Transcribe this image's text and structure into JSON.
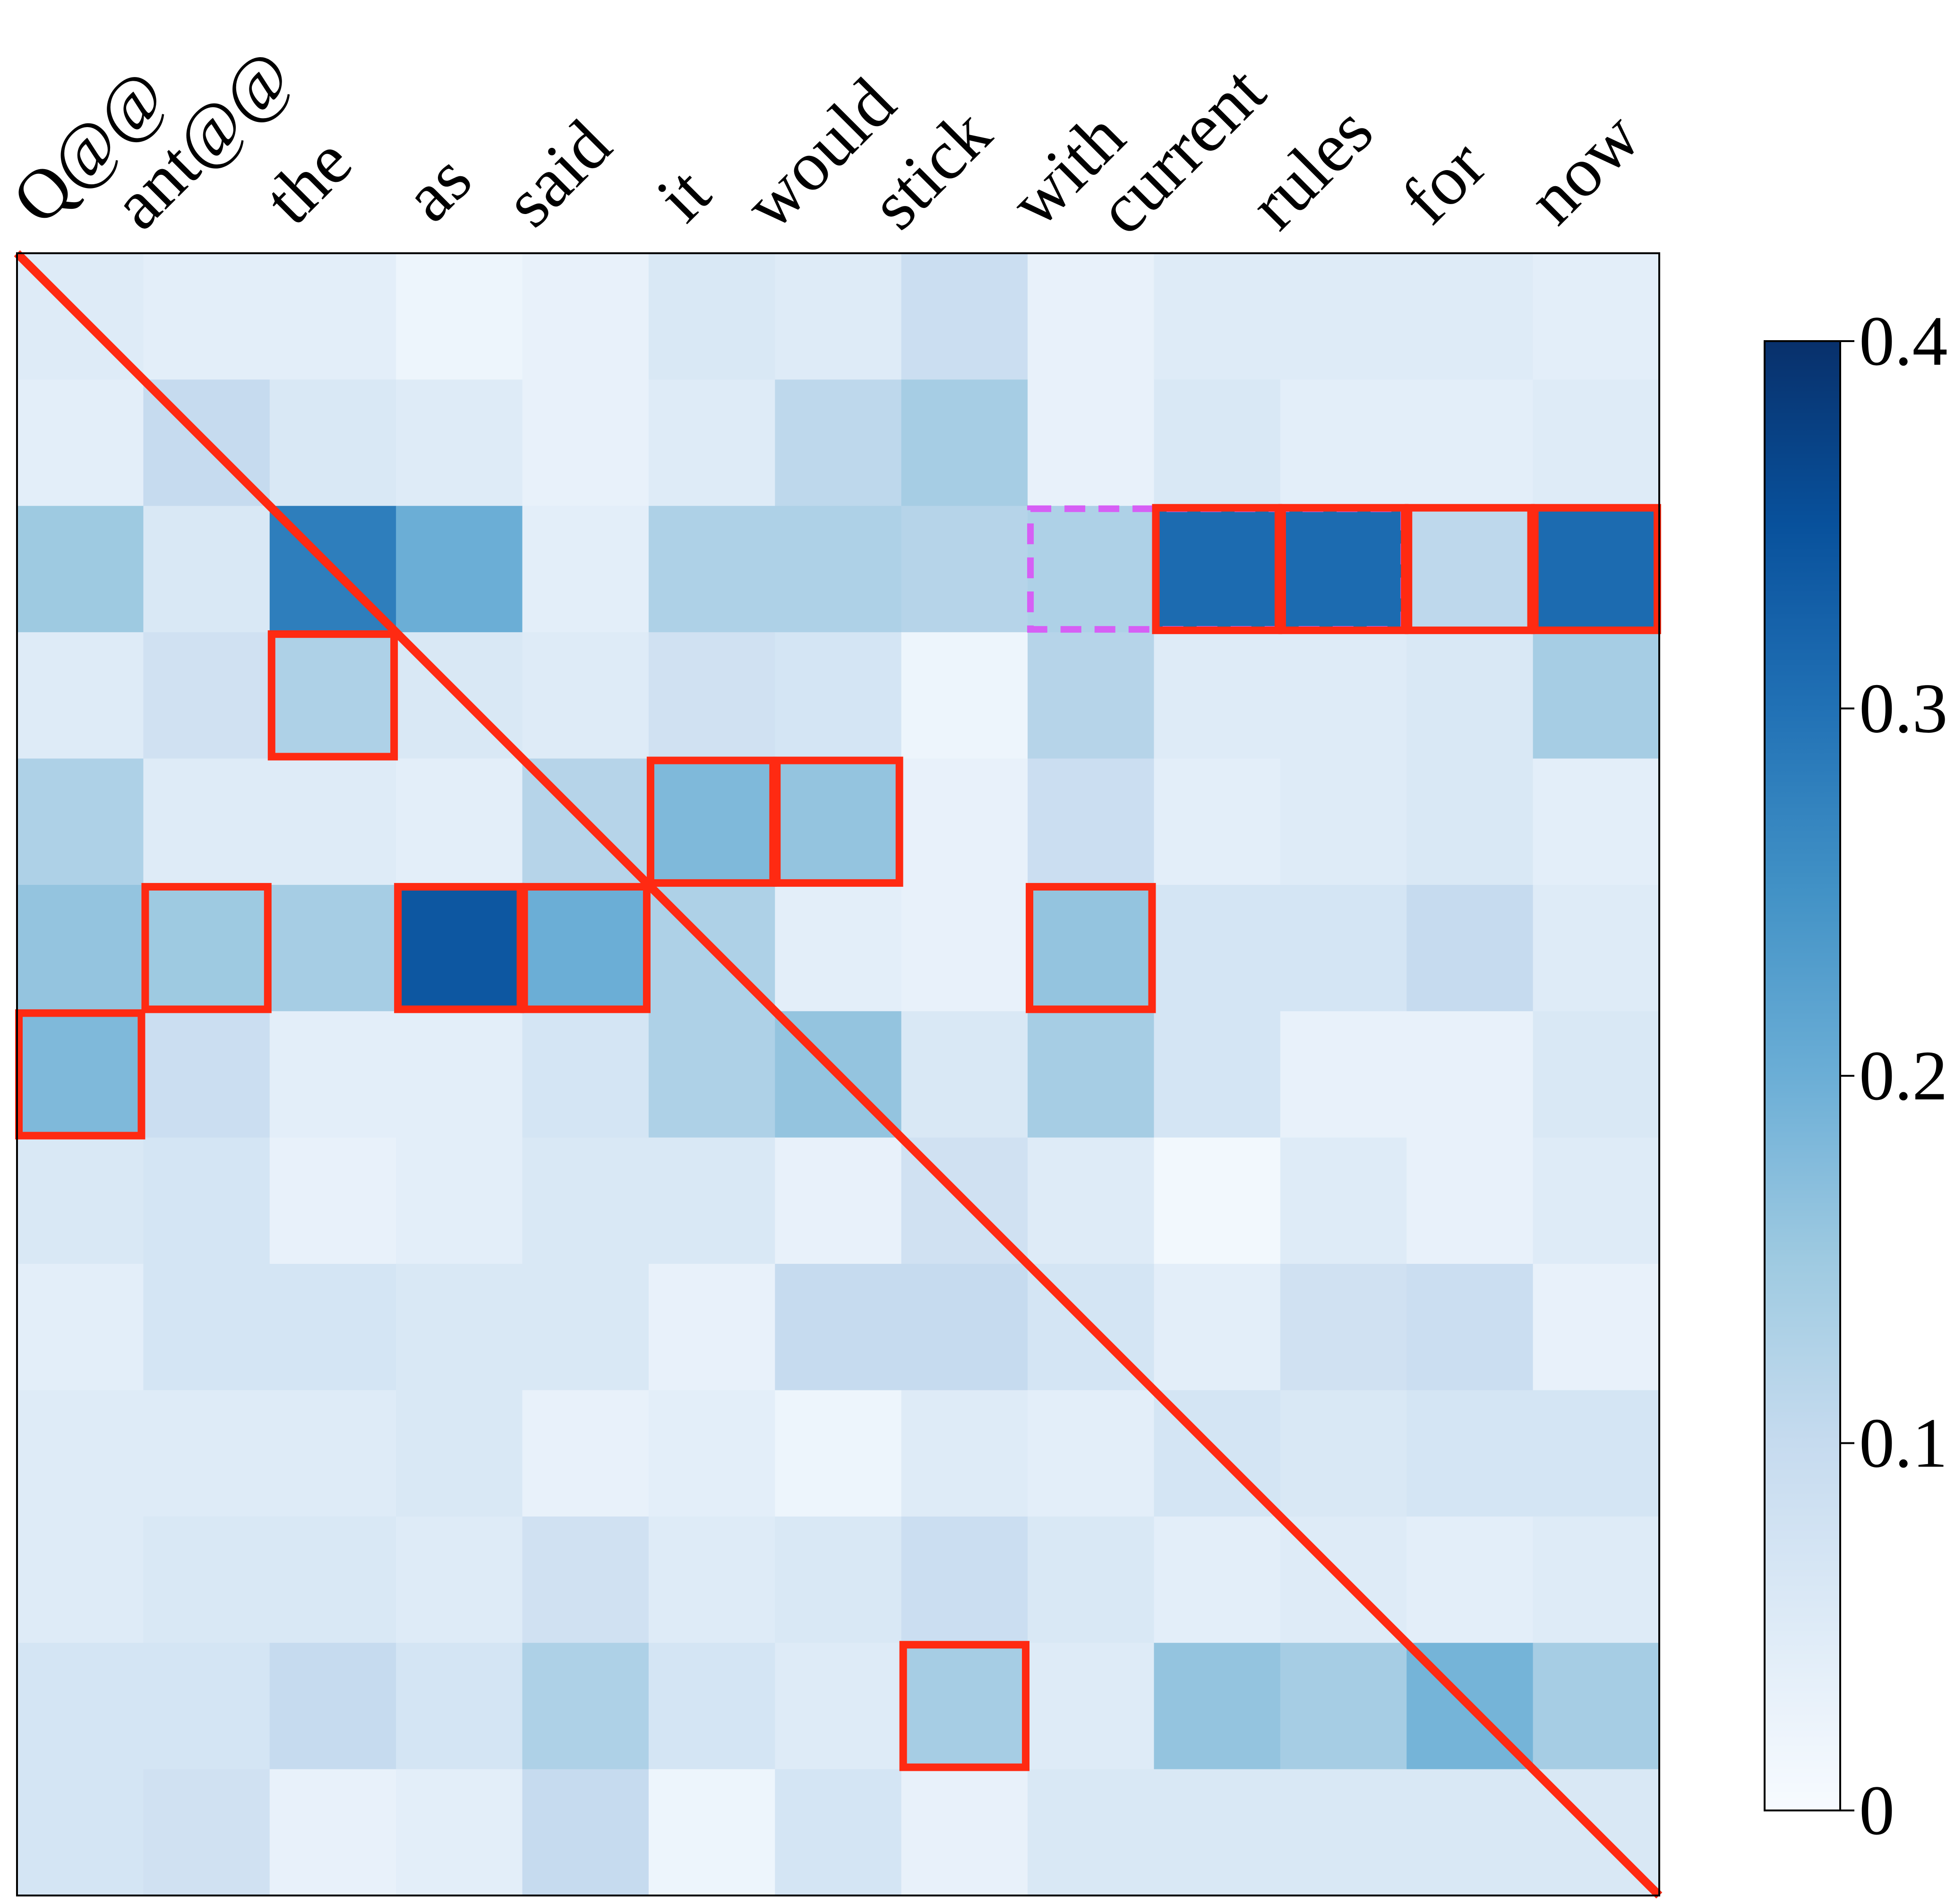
{
  "chart_data": {
    "type": "heatmap",
    "title": "",
    "x_tokens": [
      "Q@@",
      "ant@@",
      "the",
      "as",
      "said",
      "it",
      "would",
      "stick",
      "with",
      "current",
      "rules",
      "for",
      "now"
    ],
    "matrix": [
      [
        0.05,
        0.04,
        0.04,
        0.02,
        0.03,
        0.06,
        0.05,
        0.09,
        0.03,
        0.05,
        0.05,
        0.05,
        0.04
      ],
      [
        0.04,
        0.1,
        0.06,
        0.05,
        0.03,
        0.05,
        0.11,
        0.14,
        0.03,
        0.06,
        0.04,
        0.04,
        0.05
      ],
      [
        0.15,
        0.06,
        0.28,
        0.2,
        0.04,
        0.13,
        0.13,
        0.12,
        0.13,
        0.31,
        0.31,
        0.11,
        0.31
      ],
      [
        0.05,
        0.08,
        0.13,
        0.06,
        0.05,
        0.08,
        0.07,
        0.02,
        0.12,
        0.05,
        0.05,
        0.06,
        0.14
      ],
      [
        0.13,
        0.05,
        0.05,
        0.04,
        0.12,
        0.18,
        0.16,
        0.03,
        0.09,
        0.04,
        0.05,
        0.06,
        0.04
      ],
      [
        0.16,
        0.15,
        0.14,
        0.34,
        0.2,
        0.13,
        0.04,
        0.03,
        0.16,
        0.07,
        0.07,
        0.1,
        0.05
      ],
      [
        0.18,
        0.09,
        0.04,
        0.04,
        0.07,
        0.13,
        0.16,
        0.06,
        0.14,
        0.07,
        0.03,
        0.03,
        0.06
      ],
      [
        0.06,
        0.07,
        0.03,
        0.04,
        0.06,
        0.06,
        0.03,
        0.08,
        0.05,
        0.01,
        0.05,
        0.03,
        0.05
      ],
      [
        0.04,
        0.07,
        0.07,
        0.06,
        0.06,
        0.03,
        0.1,
        0.1,
        0.07,
        0.04,
        0.08,
        0.09,
        0.03
      ],
      [
        0.05,
        0.05,
        0.05,
        0.06,
        0.03,
        0.04,
        0.02,
        0.05,
        0.04,
        0.07,
        0.06,
        0.07,
        0.07
      ],
      [
        0.05,
        0.06,
        0.06,
        0.05,
        0.08,
        0.05,
        0.06,
        0.09,
        0.06,
        0.04,
        0.05,
        0.04,
        0.05
      ],
      [
        0.07,
        0.07,
        0.1,
        0.07,
        0.13,
        0.07,
        0.05,
        0.14,
        0.05,
        0.16,
        0.14,
        0.19,
        0.14
      ],
      [
        0.07,
        0.08,
        0.03,
        0.04,
        0.1,
        0.02,
        0.07,
        0.03,
        0.06,
        0.06,
        0.06,
        0.06,
        0.06
      ]
    ],
    "colorbar": {
      "min": 0,
      "max": 0.4,
      "ticks": [
        0,
        0.1,
        0.2,
        0.3,
        0.4
      ],
      "tick_labels": [
        "0",
        "0.1",
        "0.2",
        "0.3",
        "0.4"
      ],
      "colormap": "Blues"
    },
    "diagonal_line": true,
    "highlight_cells_row_col": [
      [
        2,
        9
      ],
      [
        2,
        10
      ],
      [
        2,
        11
      ],
      [
        2,
        12
      ],
      [
        3,
        2
      ],
      [
        4,
        5
      ],
      [
        4,
        6
      ],
      [
        5,
        1
      ],
      [
        5,
        3
      ],
      [
        5,
        4
      ],
      [
        5,
        8
      ],
      [
        6,
        0
      ],
      [
        11,
        7
      ]
    ],
    "dashed_highlight": {
      "row": 2,
      "col_start": 8,
      "col_end": 10
    },
    "colors": {
      "highlight": "#ff2a12",
      "dashed": "#d65ff5",
      "diagonal": "#ff2a12"
    }
  }
}
